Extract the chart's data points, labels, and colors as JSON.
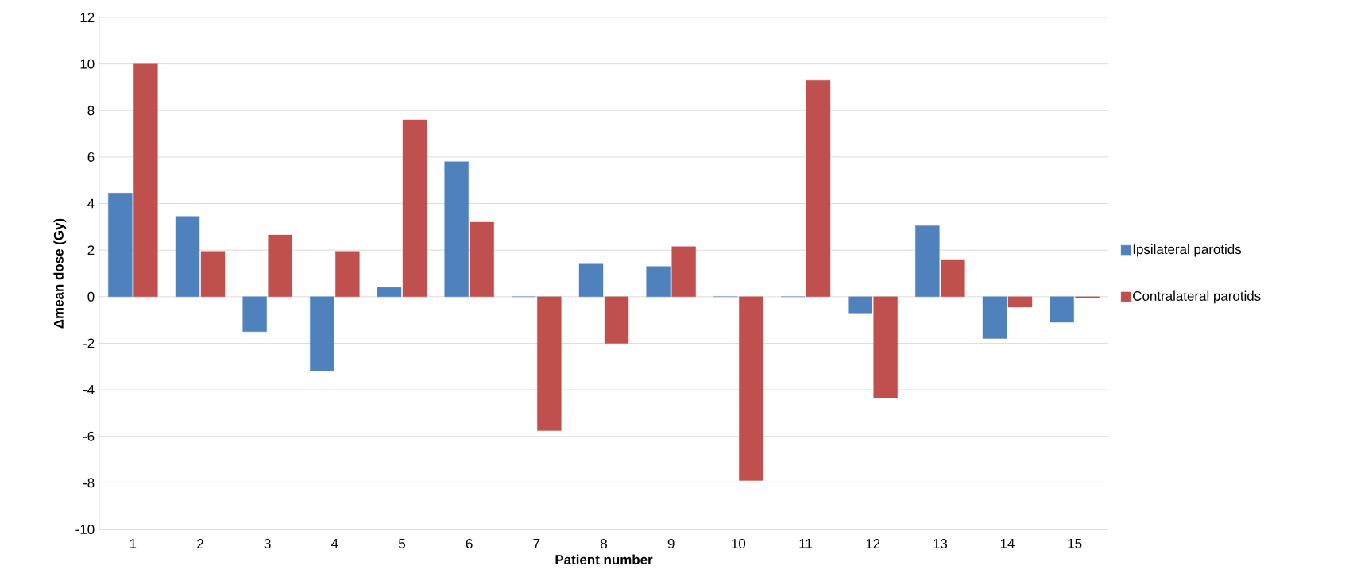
{
  "chart_data": {
    "type": "bar",
    "xlabel": "Patient number",
    "ylabel": "Δmean dose (Gy)",
    "categories": [
      "1",
      "2",
      "3",
      "4",
      "5",
      "6",
      "7",
      "8",
      "9",
      "10",
      "11",
      "12",
      "13",
      "14",
      "15"
    ],
    "series": [
      {
        "name": "Ipsilateral parotids",
        "color": "#4f81bd",
        "values": [
          4.45,
          3.45,
          -1.5,
          -3.2,
          0.4,
          5.8,
          0,
          1.4,
          1.3,
          0,
          0,
          -0.7,
          3.05,
          -1.8,
          -1.1
        ]
      },
      {
        "name": "Contralateral parotids",
        "color": "#c0504d",
        "values": [
          10.0,
          1.95,
          2.65,
          1.95,
          7.6,
          3.2,
          -5.75,
          -2.0,
          2.15,
          -7.9,
          9.3,
          -4.35,
          1.6,
          -0.45,
          -0.05
        ]
      }
    ],
    "ylim": [
      -10,
      12
    ],
    "yticks": [
      -10,
      -8,
      -6,
      -4,
      -2,
      0,
      2,
      4,
      6,
      8,
      10,
      12
    ],
    "grid": "y",
    "legend": "right"
  }
}
